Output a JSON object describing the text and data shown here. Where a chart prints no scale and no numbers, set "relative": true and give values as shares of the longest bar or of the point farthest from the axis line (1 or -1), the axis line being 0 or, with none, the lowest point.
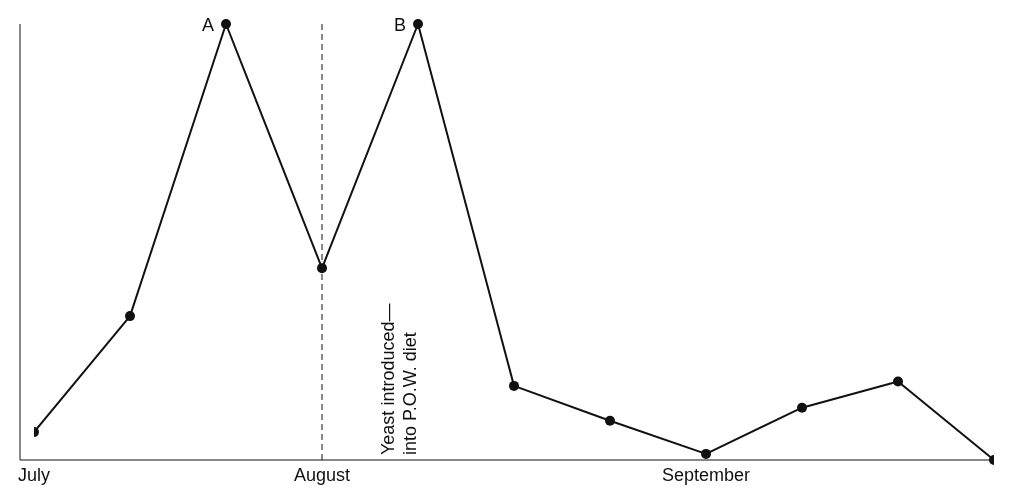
{
  "chart_data": {
    "type": "line",
    "relative": true,
    "categories": [
      "July",
      null,
      null,
      "August",
      null,
      null,
      null,
      "September",
      null,
      null,
      null
    ],
    "series": [
      {
        "color": "#111111",
        "values": [
          0.064,
          0.33,
          1,
          0.44,
          1,
          0.17,
          0.09,
          0.014,
          0.12,
          0.18,
          0
        ]
      }
    ],
    "marker": "circle",
    "line_style": "solid",
    "grid": false,
    "legend": false,
    "ref_lines": [
      {
        "axis": "x",
        "value": "August",
        "line_style": "dashed",
        "color": "#111111",
        "label": "Yeast introduced—\ninto P.O.W. diet"
      }
    ],
    "annotations": [
      "A",
      "B"
    ]
  }
}
